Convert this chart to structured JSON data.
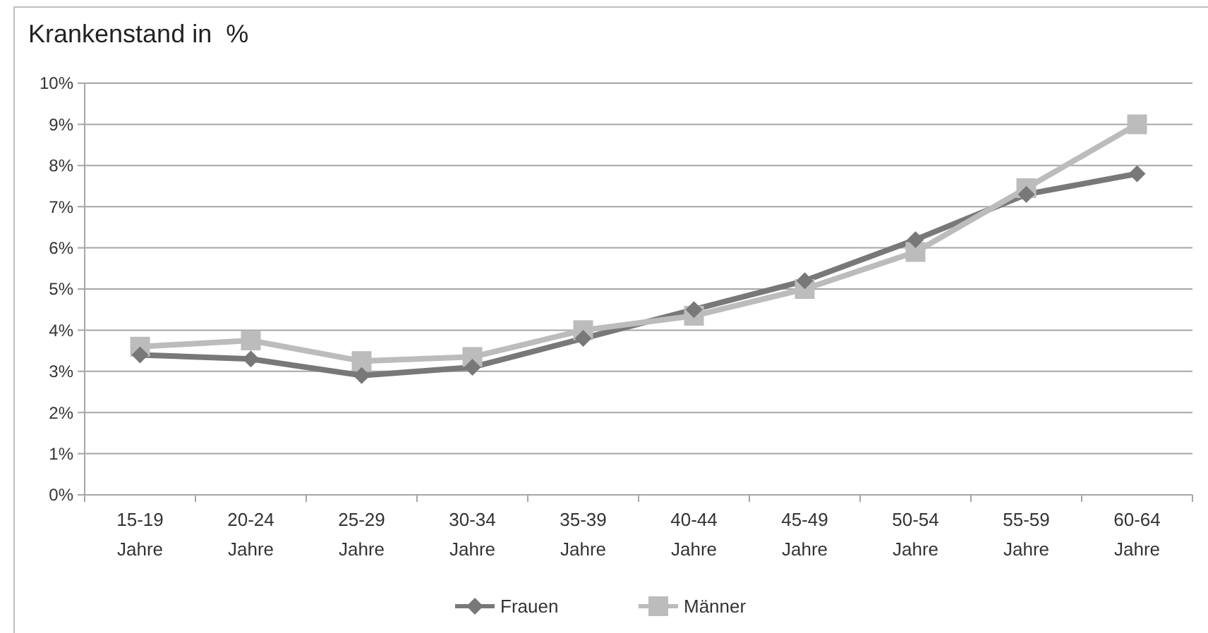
{
  "chart_data": {
    "type": "line",
    "title": "Krankenstand in  %",
    "categories": [
      "15-19 Jahre",
      "20-24 Jahre",
      "25-29 Jahre",
      "30-34 Jahre",
      "35-39 Jahre",
      "40-44 Jahre",
      "45-49 Jahre",
      "50-54 Jahre",
      "55-59 Jahre",
      "60-64 Jahre"
    ],
    "series": [
      {
        "name": "Frauen",
        "color": "#787878",
        "marker": "diamond",
        "values": [
          3.4,
          3.3,
          2.9,
          3.1,
          3.8,
          4.5,
          5.2,
          6.2,
          7.3,
          7.8
        ]
      },
      {
        "name": "Männer",
        "color": "#bcbcbc",
        "marker": "square",
        "values": [
          3.6,
          3.75,
          3.25,
          3.35,
          4.0,
          4.35,
          5.0,
          5.9,
          7.45,
          9.0
        ]
      }
    ],
    "ylim": [
      0,
      10
    ],
    "yticks": [
      {
        "value": 0,
        "label": "0%"
      },
      {
        "value": 1,
        "label": "1%"
      },
      {
        "value": 2,
        "label": "2%"
      },
      {
        "value": 3,
        "label": "3%"
      },
      {
        "value": 4,
        "label": "4%"
      },
      {
        "value": 5,
        "label": "5%"
      },
      {
        "value": 6,
        "label": "6%"
      },
      {
        "value": 7,
        "label": "7%"
      },
      {
        "value": 8,
        "label": "8%"
      },
      {
        "value": 9,
        "label": "9%"
      },
      {
        "value": 10,
        "label": "10%"
      }
    ],
    "grid": "y",
    "legend": "bottom"
  }
}
